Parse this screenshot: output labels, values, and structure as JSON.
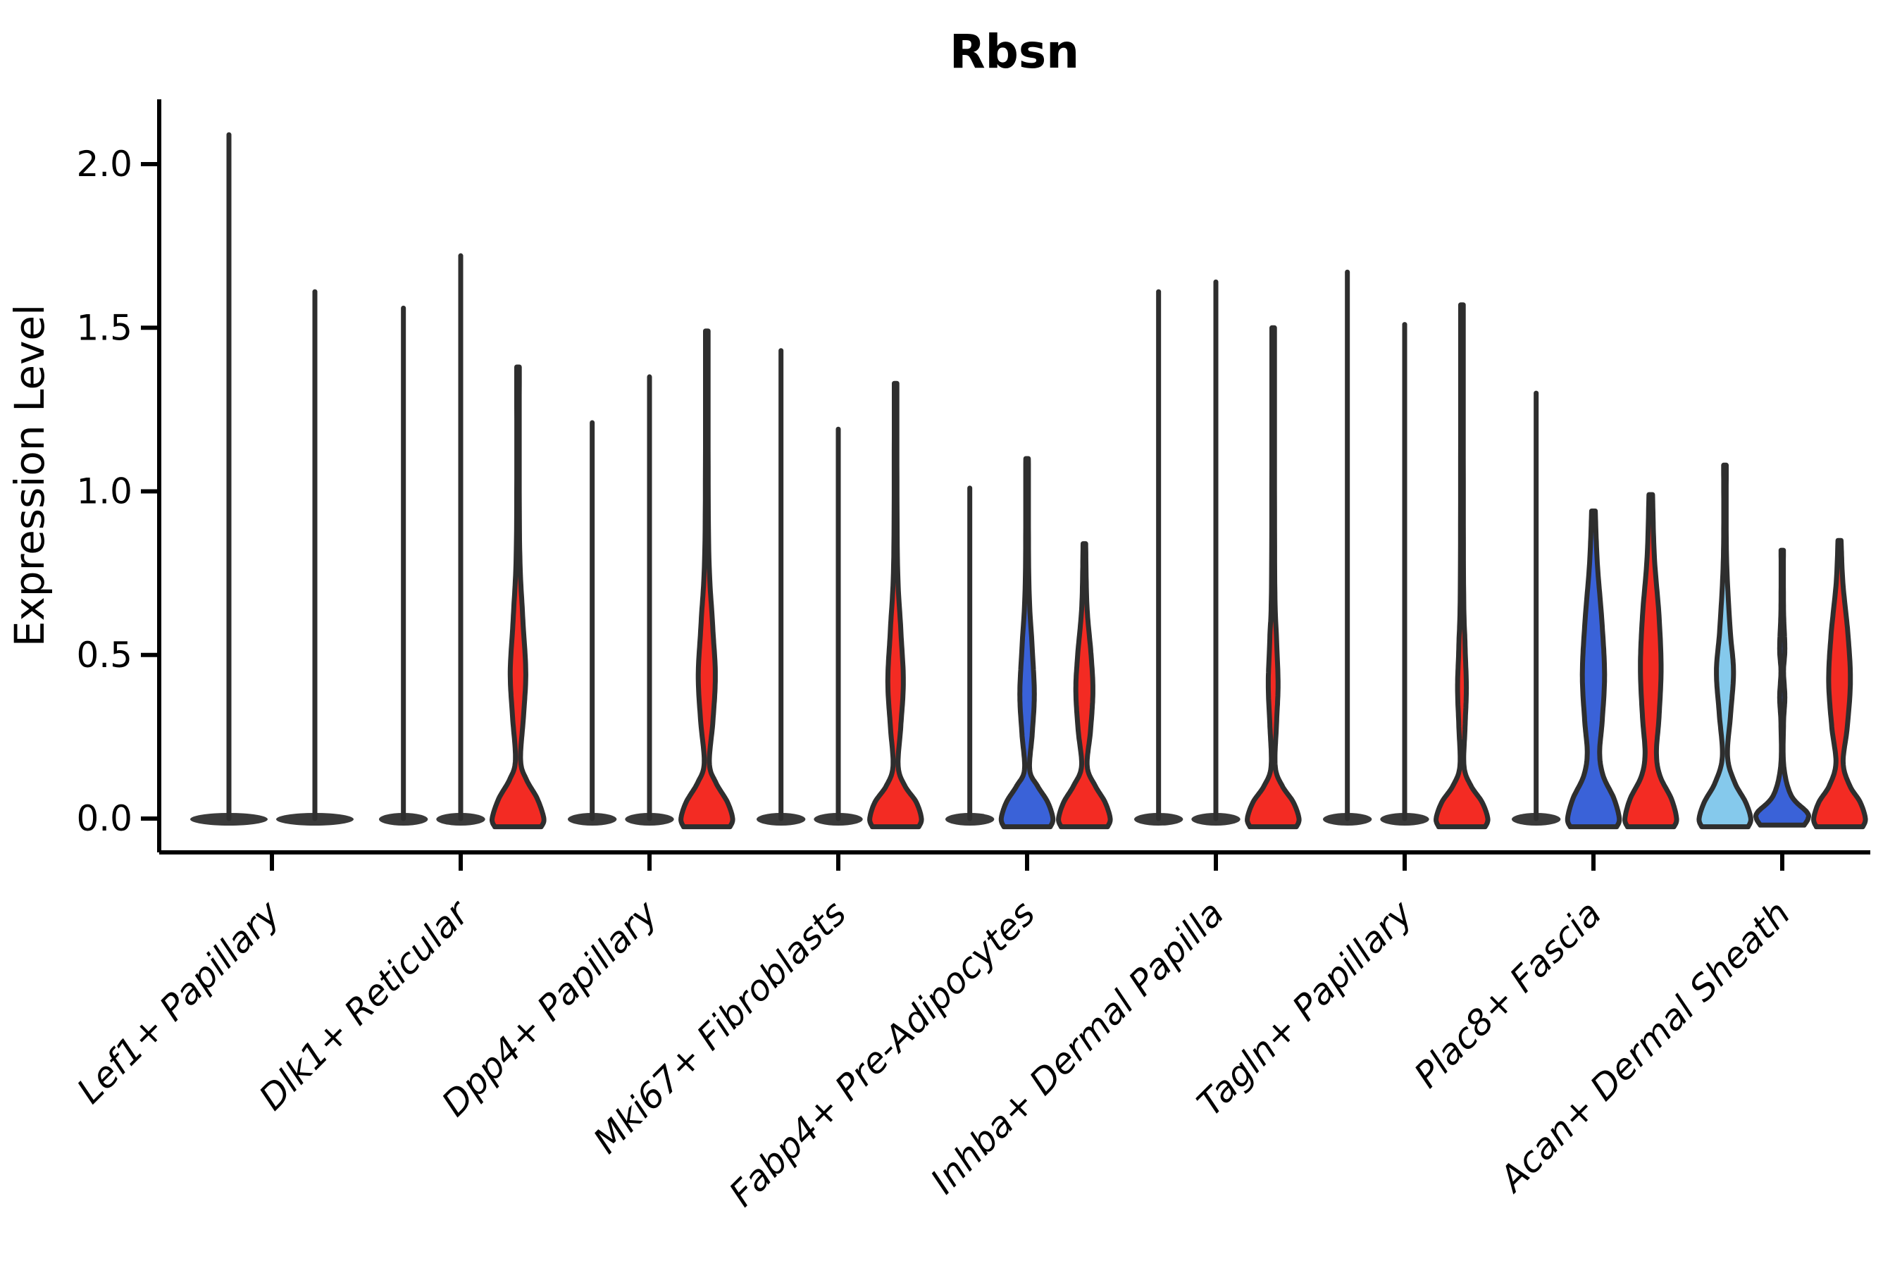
{
  "chart_data": {
    "type": "violin",
    "title": "Rbsn",
    "ylabel": "Expression Level",
    "xlabel": "",
    "ylim": [
      -0.105,
      2.2
    ],
    "yticks": [
      0.0,
      0.5,
      1.0,
      1.5,
      2.0
    ],
    "ytick_labels": [
      "0.0",
      "0.5",
      "1.0",
      "1.5",
      "2.0"
    ],
    "grid": "off",
    "legend": "none",
    "categories": [
      "Lef1+ Papillary",
      "Dlk1+ Reticular",
      "Dpp4+ Papillary",
      "Mki67+ Fibroblasts",
      "Fabp4+ Pre-Adipocytes",
      "Inhba+ Dermal Papilla",
      "Tagln+ Papillary",
      "Plac8+ Fascia",
      "Acan+ Dermal Sheath"
    ],
    "palette": {
      "red": "#F32B23",
      "blue": "#3A62D8",
      "lightblue": "#85C9EC",
      "outline": "#2E2E2E",
      "base_ellipse": "#3A3A3A",
      "axis": "#000000"
    },
    "groups": [
      {
        "category": "Lef1+ Papillary",
        "violins": [
          {
            "shape": "line",
            "color": null,
            "top": 2.09
          },
          {
            "shape": "line",
            "color": null,
            "top": 1.61
          }
        ]
      },
      {
        "category": "Dlk1+ Reticular",
        "violins": [
          {
            "shape": "line",
            "color": null,
            "top": 1.56
          },
          {
            "shape": "line",
            "color": null,
            "top": 1.72
          },
          {
            "shape": "body",
            "color": "red",
            "top": 1.38,
            "profile": [
              [
                1.38,
                0.05
              ],
              [
                0.85,
                0.06
              ],
              [
                0.62,
                0.18
              ],
              [
                0.45,
                0.3
              ],
              [
                0.32,
                0.22
              ],
              [
                0.18,
                0.1
              ],
              [
                0.12,
                0.32
              ],
              [
                0.06,
                0.75
              ],
              [
                0.0,
                1.0
              ],
              [
                -0.025,
                0.9
              ]
            ]
          }
        ]
      },
      {
        "category": "Dpp4+ Papillary",
        "violins": [
          {
            "shape": "line",
            "color": null,
            "top": 1.21
          },
          {
            "shape": "line",
            "color": null,
            "top": 1.35
          },
          {
            "shape": "body",
            "color": "red",
            "top": 1.49,
            "profile": [
              [
                1.49,
                0.05
              ],
              [
                0.85,
                0.07
              ],
              [
                0.6,
                0.22
              ],
              [
                0.44,
                0.33
              ],
              [
                0.3,
                0.24
              ],
              [
                0.17,
                0.1
              ],
              [
                0.11,
                0.35
              ],
              [
                0.05,
                0.8
              ],
              [
                0.0,
                1.0
              ],
              [
                -0.025,
                0.9
              ]
            ]
          }
        ]
      },
      {
        "category": "Mki67+ Fibroblasts",
        "violins": [
          {
            "shape": "line",
            "color": null,
            "top": 1.43
          },
          {
            "shape": "line",
            "color": null,
            "top": 1.19
          },
          {
            "shape": "body",
            "color": "red",
            "top": 1.33,
            "profile": [
              [
                1.33,
                0.05
              ],
              [
                0.8,
                0.07
              ],
              [
                0.58,
                0.2
              ],
              [
                0.42,
                0.3
              ],
              [
                0.28,
                0.2
              ],
              [
                0.16,
                0.1
              ],
              [
                0.1,
                0.36
              ],
              [
                0.05,
                0.8
              ],
              [
                0.0,
                1.0
              ],
              [
                -0.025,
                0.9
              ]
            ]
          }
        ]
      },
      {
        "category": "Fabp4+ Pre-Adipocytes",
        "violins": [
          {
            "shape": "line",
            "color": null,
            "top": 1.01
          },
          {
            "shape": "body",
            "color": "blue",
            "top": 1.1,
            "profile": [
              [
                1.1,
                0.05
              ],
              [
                0.72,
                0.07
              ],
              [
                0.52,
                0.2
              ],
              [
                0.38,
                0.28
              ],
              [
                0.26,
                0.2
              ],
              [
                0.15,
                0.1
              ],
              [
                0.1,
                0.4
              ],
              [
                0.05,
                0.8
              ],
              [
                0.0,
                1.0
              ],
              [
                -0.025,
                0.9
              ]
            ]
          },
          {
            "shape": "body",
            "color": "red",
            "top": 0.84,
            "profile": [
              [
                0.84,
                0.05
              ],
              [
                0.65,
                0.1
              ],
              [
                0.5,
                0.26
              ],
              [
                0.39,
                0.33
              ],
              [
                0.27,
                0.24
              ],
              [
                0.16,
                0.11
              ],
              [
                0.1,
                0.42
              ],
              [
                0.05,
                0.8
              ],
              [
                0.0,
                1.0
              ],
              [
                -0.025,
                0.9
              ]
            ]
          }
        ]
      },
      {
        "category": "Inhba+ Dermal Papilla",
        "violins": [
          {
            "shape": "line",
            "color": null,
            "top": 1.61
          },
          {
            "shape": "line",
            "color": null,
            "top": 1.64
          },
          {
            "shape": "body",
            "color": "red",
            "top": 1.5,
            "profile": [
              [
                1.5,
                0.05
              ],
              [
                0.75,
                0.06
              ],
              [
                0.55,
                0.13
              ],
              [
                0.41,
                0.19
              ],
              [
                0.29,
                0.13
              ],
              [
                0.16,
                0.08
              ],
              [
                0.1,
                0.35
              ],
              [
                0.05,
                0.78
              ],
              [
                0.0,
                1.0
              ],
              [
                -0.025,
                0.9
              ]
            ]
          }
        ]
      },
      {
        "category": "Tagln+ Papillary",
        "violins": [
          {
            "shape": "line",
            "color": null,
            "top": 1.67
          },
          {
            "shape": "line",
            "color": null,
            "top": 1.51
          },
          {
            "shape": "body",
            "color": "red",
            "top": 1.57,
            "profile": [
              [
                1.57,
                0.05
              ],
              [
                0.75,
                0.06
              ],
              [
                0.53,
                0.12
              ],
              [
                0.4,
                0.17
              ],
              [
                0.28,
                0.12
              ],
              [
                0.16,
                0.08
              ],
              [
                0.1,
                0.35
              ],
              [
                0.05,
                0.78
              ],
              [
                0.0,
                1.0
              ],
              [
                -0.025,
                0.9
              ]
            ]
          }
        ]
      },
      {
        "category": "Plac8+ Fascia",
        "violins": [
          {
            "shape": "line",
            "color": null,
            "top": 1.3
          },
          {
            "shape": "body",
            "color": "blue",
            "top": 0.94,
            "profile": [
              [
                0.94,
                0.07
              ],
              [
                0.78,
                0.15
              ],
              [
                0.6,
                0.33
              ],
              [
                0.44,
                0.43
              ],
              [
                0.3,
                0.34
              ],
              [
                0.2,
                0.24
              ],
              [
                0.13,
                0.38
              ],
              [
                0.06,
                0.8
              ],
              [
                0.0,
                1.0
              ],
              [
                -0.025,
                0.9
              ]
            ]
          },
          {
            "shape": "body",
            "color": "red",
            "top": 0.99,
            "profile": [
              [
                0.99,
                0.07
              ],
              [
                0.8,
                0.14
              ],
              [
                0.62,
                0.32
              ],
              [
                0.46,
                0.4
              ],
              [
                0.31,
                0.32
              ],
              [
                0.2,
                0.22
              ],
              [
                0.13,
                0.36
              ],
              [
                0.06,
                0.8
              ],
              [
                0.0,
                1.0
              ],
              [
                -0.025,
                0.9
              ]
            ]
          }
        ]
      },
      {
        "category": "Acan+ Dermal Sheath",
        "violins": [
          {
            "shape": "body",
            "color": "lightblue",
            "top": 1.08,
            "profile": [
              [
                1.08,
                0.05
              ],
              [
                0.8,
                0.06
              ],
              [
                0.58,
                0.2
              ],
              [
                0.45,
                0.33
              ],
              [
                0.32,
                0.22
              ],
              [
                0.19,
                0.1
              ],
              [
                0.11,
                0.38
              ],
              [
                0.05,
                0.8
              ],
              [
                0.0,
                1.0
              ],
              [
                -0.025,
                0.9
              ]
            ]
          },
          {
            "shape": "body",
            "color": "blue",
            "top": 0.82,
            "profile": [
              [
                0.82,
                0.045
              ],
              [
                0.64,
                0.05
              ],
              [
                0.52,
                0.1
              ],
              [
                0.45,
                0.05
              ],
              [
                0.37,
                0.1
              ],
              [
                0.29,
                0.05
              ],
              [
                0.16,
                0.06
              ],
              [
                0.07,
                0.35
              ],
              [
                0.02,
                0.95
              ],
              [
                0.0,
                1.0
              ],
              [
                -0.02,
                0.85
              ]
            ]
          },
          {
            "shape": "body",
            "color": "red",
            "top": 0.85,
            "profile": [
              [
                0.85,
                0.06
              ],
              [
                0.72,
                0.13
              ],
              [
                0.56,
                0.33
              ],
              [
                0.42,
                0.42
              ],
              [
                0.28,
                0.3
              ],
              [
                0.17,
                0.14
              ],
              [
                0.1,
                0.4
              ],
              [
                0.05,
                0.8
              ],
              [
                0.0,
                1.0
              ],
              [
                -0.025,
                0.9
              ]
            ]
          }
        ]
      }
    ]
  }
}
